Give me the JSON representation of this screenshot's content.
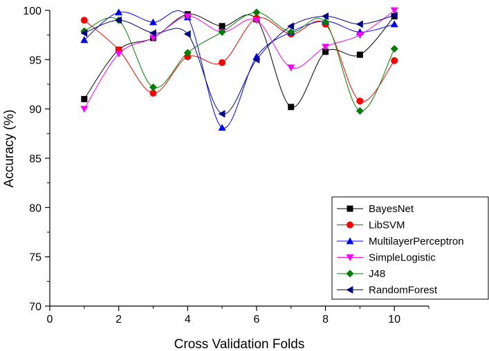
{
  "chart_data": {
    "type": "line",
    "title": "",
    "xlabel": "Cross Validation Folds",
    "ylabel": "Accuracy (%)",
    "xlim": [
      0,
      11
    ],
    "ylim": [
      70,
      100
    ],
    "x_ticks": [
      0,
      2,
      4,
      6,
      8,
      10
    ],
    "y_ticks": [
      70,
      75,
      80,
      85,
      90,
      95,
      100
    ],
    "x_tick_labels": [
      "0",
      "2",
      "4",
      "6",
      "8",
      "10"
    ],
    "y_tick_labels": [
      "70",
      "75",
      "80",
      "85",
      "90",
      "95",
      "100"
    ],
    "legend_position": "bottom-right",
    "x": [
      1,
      2,
      3,
      4,
      5,
      6,
      7,
      8,
      9,
      10
    ],
    "series": [
      {
        "name": "BayesNet",
        "color": "#000000",
        "marker": "square",
        "values": [
          91.0,
          96.0,
          97.2,
          99.6,
          98.4,
          99.1,
          90.2,
          95.8,
          95.5,
          99.4
        ]
      },
      {
        "name": "LibSVM",
        "color": "#ff0000",
        "marker": "circle",
        "values": [
          99.0,
          96.0,
          91.6,
          95.3,
          94.7,
          99.2,
          97.6,
          98.6,
          90.8,
          94.9
        ]
      },
      {
        "name": "MultilayerPerceptron",
        "color": "#0000ff",
        "marker": "triangle-up",
        "values": [
          97.0,
          99.8,
          98.8,
          99.3,
          88.1,
          95.3,
          97.8,
          98.9,
          97.8,
          98.6
        ]
      },
      {
        "name": "SimpleLogistic",
        "color": "#ff00ff",
        "marker": "triangle-down",
        "values": [
          90.0,
          95.6,
          97.2,
          99.4,
          97.8,
          99.0,
          94.2,
          96.3,
          97.5,
          100.0
        ]
      },
      {
        "name": "J48",
        "color": "#008000",
        "marker": "diamond",
        "values": [
          97.9,
          99.0,
          92.2,
          95.7,
          97.8,
          99.8,
          97.8,
          98.8,
          89.8,
          96.1
        ]
      },
      {
        "name": "RandomForest",
        "color": "#00008b",
        "marker": "triangle-left",
        "values": [
          97.7,
          99.0,
          97.7,
          97.6,
          89.5,
          95.0,
          98.4,
          99.4,
          98.6,
          99.5
        ]
      }
    ]
  }
}
